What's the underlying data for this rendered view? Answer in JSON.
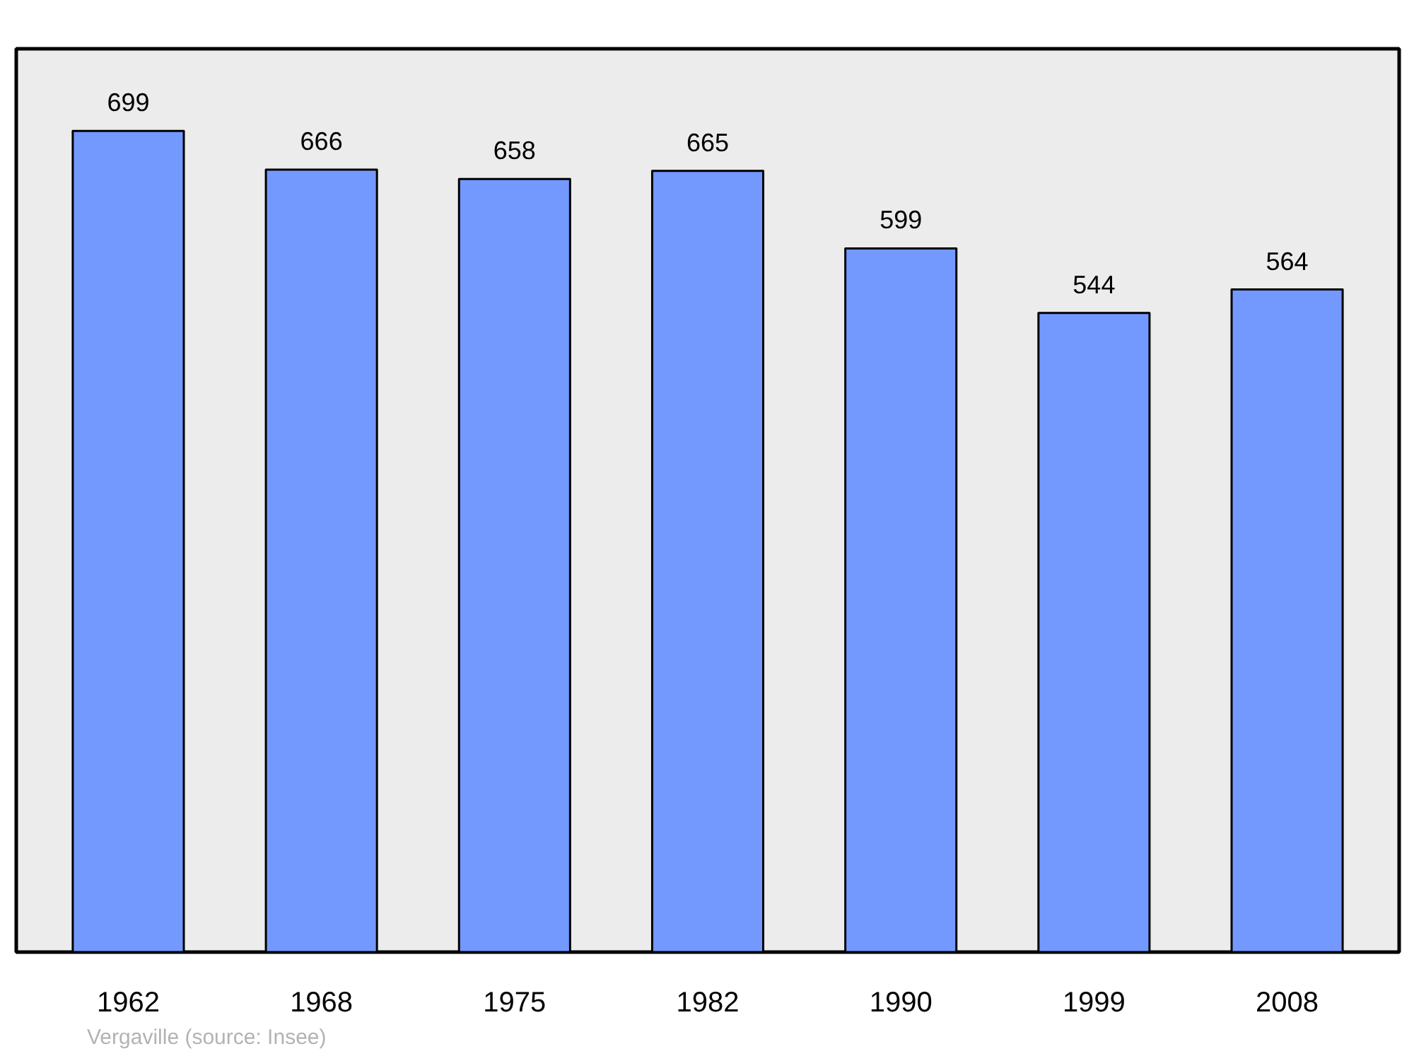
{
  "chart_data": {
    "type": "bar",
    "categories": [
      "1962",
      "1968",
      "1975",
      "1982",
      "1990",
      "1999",
      "2008"
    ],
    "values": [
      699,
      666,
      658,
      665,
      599,
      544,
      564
    ],
    "color": "#7399ff",
    "data_labels": true,
    "grid": false,
    "tick_labels": "x",
    "annotations": [
      "Vergaville    (source: Insee)"
    ]
  }
}
